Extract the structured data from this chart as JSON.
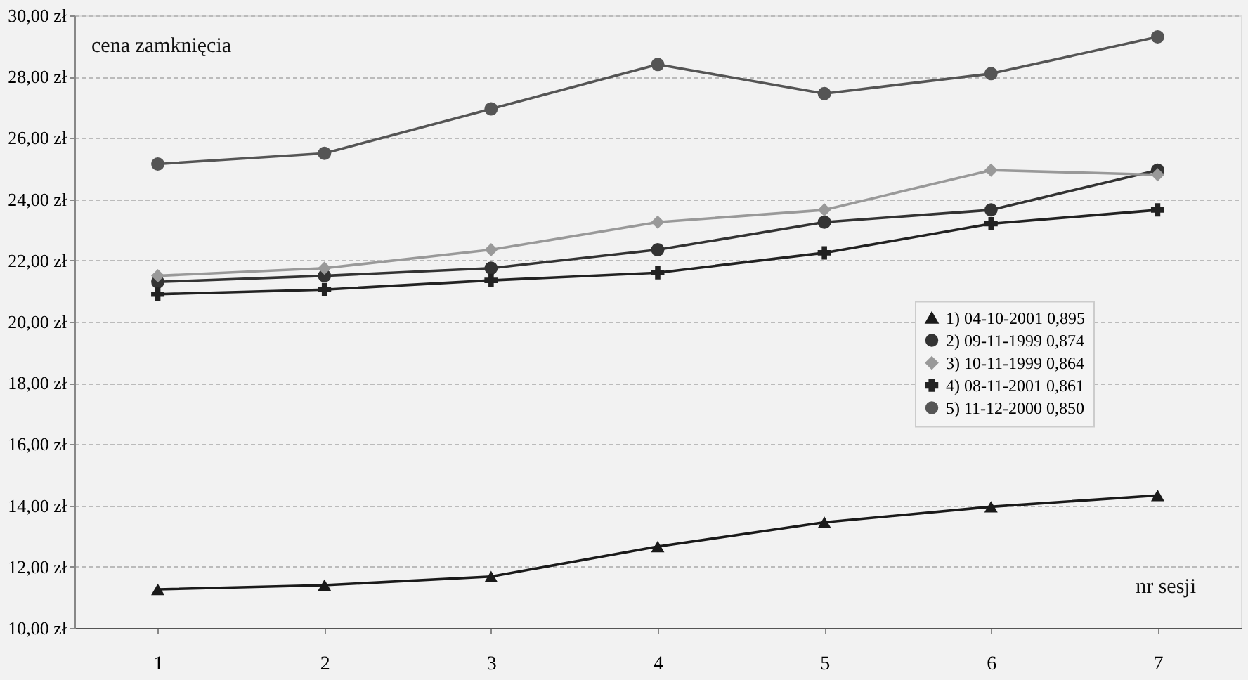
{
  "chart_data": {
    "type": "line",
    "xlabel": "nr sesji",
    "ylabel": "cena zamknięcia",
    "categories": [
      "1",
      "2",
      "3",
      "4",
      "5",
      "6",
      "7"
    ],
    "series": [
      {
        "name": "1) 04-10-2001 0,895",
        "color": "#1a1a1a",
        "marker": "triangle",
        "values": [
          11.26,
          11.4,
          11.68,
          12.66,
          13.45,
          13.96,
          14.33
        ]
      },
      {
        "name": "2) 09-11-1999 0,874",
        "color": "#333333",
        "marker": "circle",
        "values": [
          21.3,
          21.5,
          21.75,
          22.35,
          23.25,
          23.65,
          24.95
        ]
      },
      {
        "name": "3) 10-11-1999 0,864",
        "color": "#999999",
        "marker": "diamond",
        "values": [
          21.5,
          21.75,
          22.35,
          23.25,
          23.65,
          24.95,
          24.8
        ]
      },
      {
        "name": "4) 08-11-2001 0,861",
        "color": "#222222",
        "marker": "cross",
        "values": [
          20.9,
          21.05,
          21.35,
          21.6,
          22.25,
          23.2,
          23.65
        ]
      },
      {
        "name": "5) 11-12-2000 0,850",
        "color": "#555555",
        "marker": "circle",
        "values": [
          25.15,
          25.5,
          26.95,
          28.4,
          27.45,
          28.1,
          29.3
        ]
      }
    ],
    "ylim": [
      10,
      30
    ],
    "yticks": [
      {
        "value": 10,
        "label": "10,00 zł"
      },
      {
        "value": 12,
        "label": "12,00 zł"
      },
      {
        "value": 14,
        "label": "14,00 zł"
      },
      {
        "value": 16,
        "label": "16,00 zł"
      },
      {
        "value": 18,
        "label": "18,00 zł"
      },
      {
        "value": 20,
        "label": "20,00 zł"
      },
      {
        "value": 22,
        "label": "22,00 zł"
      },
      {
        "value": 24,
        "label": "24,00 zł"
      },
      {
        "value": 26,
        "label": "26,00 zł"
      },
      {
        "value": 28,
        "label": "28,00 zł"
      },
      {
        "value": 30,
        "label": "30,00 zł"
      }
    ],
    "grid": "y",
    "legend": "right",
    "line_style": "solid"
  }
}
